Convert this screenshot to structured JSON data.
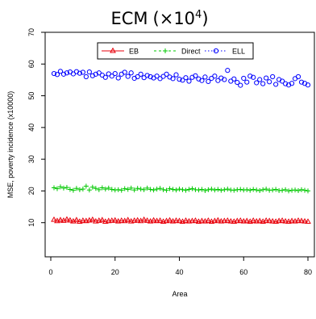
{
  "chart_data": {
    "type": "scatter",
    "title": "ECM",
    "title_factor": "(×10",
    "title_exponent": "4",
    "title_close": ")",
    "xlabel": "Area",
    "ylabel": "MSE, poverty incidence (x10000)",
    "xlim": [
      0,
      80
    ],
    "ylim": [
      0,
      70
    ],
    "x_ticks": [
      0,
      20,
      40,
      60,
      80
    ],
    "y_ticks": [
      10,
      20,
      30,
      40,
      50,
      60,
      70
    ],
    "legend_position": "top-center",
    "x": [
      1,
      2,
      3,
      4,
      5,
      6,
      7,
      8,
      9,
      10,
      11,
      12,
      13,
      14,
      15,
      16,
      17,
      18,
      19,
      20,
      21,
      22,
      23,
      24,
      25,
      26,
      27,
      28,
      29,
      30,
      31,
      32,
      33,
      34,
      35,
      36,
      37,
      38,
      39,
      40,
      41,
      42,
      43,
      44,
      45,
      46,
      47,
      48,
      49,
      50,
      51,
      52,
      53,
      54,
      55,
      56,
      57,
      58,
      59,
      60,
      61,
      62,
      63,
      64,
      65,
      66,
      67,
      68,
      69,
      70,
      71,
      72,
      73,
      74,
      75,
      76,
      77,
      78,
      79,
      80
    ],
    "series": [
      {
        "name": "EB",
        "color": "#e8000b",
        "marker": "triangle",
        "line": "solid",
        "values": [
          10.9,
          10.5,
          10.8,
          10.6,
          11.0,
          10.7,
          10.4,
          10.8,
          10.3,
          10.6,
          10.5,
          10.7,
          10.9,
          10.4,
          10.6,
          10.8,
          10.3,
          10.5,
          10.6,
          10.7,
          10.4,
          10.6,
          10.5,
          10.8,
          10.4,
          10.6,
          10.7,
          10.5,
          10.9,
          10.6,
          10.4,
          10.7,
          10.5,
          10.6,
          10.3,
          10.5,
          10.7,
          10.4,
          10.6,
          10.5,
          10.3,
          10.6,
          10.4,
          10.5,
          10.6,
          10.3,
          10.5,
          10.4,
          10.6,
          10.3,
          10.5,
          10.7,
          10.4,
          10.5,
          10.6,
          10.4,
          10.3,
          10.5,
          10.6,
          10.4,
          10.5,
          10.3,
          10.6,
          10.4,
          10.5,
          10.3,
          10.6,
          10.5,
          10.4,
          10.3,
          10.5,
          10.6,
          10.4,
          10.3,
          10.5,
          10.4,
          10.6,
          10.5,
          10.4,
          10.3
        ]
      },
      {
        "name": "Direct",
        "color": "#00c800",
        "marker": "plus",
        "line": "dashed",
        "values": [
          21.0,
          20.7,
          21.3,
          20.9,
          21.1,
          20.5,
          20.2,
          20.8,
          20.4,
          20.6,
          21.5,
          20.3,
          21.2,
          20.8,
          20.4,
          21.0,
          20.6,
          20.9,
          20.5,
          20.3,
          20.4,
          20.2,
          20.7,
          20.5,
          20.9,
          20.3,
          20.8,
          20.6,
          20.4,
          20.9,
          20.5,
          20.3,
          20.6,
          20.8,
          20.4,
          20.2,
          20.7,
          20.5,
          20.3,
          20.6,
          20.4,
          20.2,
          20.5,
          20.7,
          20.4,
          20.3,
          20.5,
          20.1,
          20.4,
          20.6,
          20.3,
          20.5,
          20.2,
          20.4,
          20.6,
          20.3,
          20.2,
          20.4,
          20.5,
          20.3,
          20.4,
          20.2,
          20.5,
          20.3,
          20.1,
          20.4,
          20.6,
          20.2,
          20.3,
          20.5,
          20.1,
          20.2,
          20.4,
          20.0,
          20.2,
          20.3,
          20.1,
          20.4,
          20.2,
          20.0
        ]
      },
      {
        "name": "ELL",
        "color": "#0000ff",
        "marker": "circle",
        "line": "dotted",
        "values": [
          57.0,
          56.7,
          57.7,
          56.8,
          57.2,
          57.5,
          56.9,
          57.6,
          57.1,
          57.4,
          56.0,
          57.5,
          56.3,
          56.8,
          57.2,
          56.5,
          55.8,
          56.9,
          56.2,
          57.0,
          55.6,
          56.8,
          57.4,
          56.1,
          57.2,
          55.5,
          56.0,
          56.8,
          55.7,
          56.4,
          56.0,
          55.6,
          56.2,
          55.4,
          56.1,
          56.8,
          55.9,
          55.4,
          56.6,
          55.2,
          54.9,
          55.7,
          54.6,
          55.8,
          56.3,
          55.3,
          54.8,
          55.9,
          54.5,
          55.5,
          56.2,
          54.8,
          55.6,
          55.1,
          58.0,
          54.6,
          55.3,
          54.2,
          53.3,
          55.5,
          54.3,
          56.2,
          55.8,
          54.1,
          55.1,
          53.8,
          55.6,
          54.4,
          56.0,
          53.6,
          55.1,
          54.6,
          53.8,
          53.4,
          53.9,
          55.4,
          56.0,
          54.3,
          53.9,
          53.4
        ]
      }
    ]
  }
}
